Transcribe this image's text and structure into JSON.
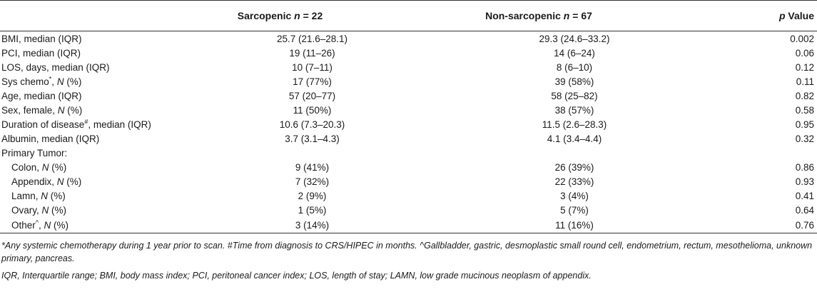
{
  "table": {
    "headers": {
      "col1": "",
      "sarc_prefix": "Sarcopenic ",
      "sarc_n": "n",
      "sarc_suffix": " = 22",
      "non_prefix": "Non-sarcopenic ",
      "non_n": "n",
      "non_suffix": " = 67",
      "p_prefix": "p",
      "p_suffix": " Value"
    },
    "rows": [
      {
        "pre": "BMI, median (IQR)",
        "it": "",
        "sup": "",
        "post": "",
        "sarc": "25.7 (21.6–28.1)",
        "non": "29.3 (24.6–33.2)",
        "p": "0.002"
      },
      {
        "pre": "PCI, median (IQR)",
        "it": "",
        "sup": "",
        "post": "",
        "sarc": "19 (11–26)",
        "non": "14 (6–24)",
        "p": "0.06"
      },
      {
        "pre": "LOS, days, median (IQR)",
        "it": "",
        "sup": "",
        "post": "",
        "sarc": "10 (7–11)",
        "non": "8 (6–10)",
        "p": "0.12"
      },
      {
        "pre": "Sys chemo",
        "sup": "*",
        "mid": ", ",
        "it": "N",
        "post": " (%)",
        "sarc": "17 (77%)",
        "non": "39 (58%)",
        "p": "0.11"
      },
      {
        "pre": "Age, median (IQR)",
        "it": "",
        "sup": "",
        "post": "",
        "sarc": "57 (20–77)",
        "non": "58 (25–82)",
        "p": "0.82"
      },
      {
        "pre": "Sex, female, ",
        "it": "N",
        "sup": "",
        "post": " (%)",
        "sarc": "11 (50%)",
        "non": "38 (57%)",
        "p": "0.58"
      },
      {
        "pre": "Duration of disease",
        "sup": "#",
        "mid": ", median (IQR)",
        "it": "",
        "post": "",
        "sarc": "10.6 (7.3–20.3)",
        "non": "11.5 (2.6–28.3)",
        "p": "0.95"
      },
      {
        "pre": "Albumin, median (IQR)",
        "it": "",
        "sup": "",
        "post": "",
        "sarc": "3.7 (3.1–4.3)",
        "non": "4.1 (3.4–4.4)",
        "p": "0.32"
      },
      {
        "pre": "Primary Tumor:",
        "it": "",
        "sup": "",
        "post": "",
        "sarc": "",
        "non": "",
        "p": ""
      },
      {
        "pre": "Colon, ",
        "it": "N",
        "sup": "",
        "post": " (%)",
        "sarc": "9 (41%)",
        "non": "26 (39%)",
        "p": "0.86",
        "indent": true
      },
      {
        "pre": "Appendix, ",
        "it": "N",
        "sup": "",
        "post": " (%)",
        "sarc": "7 (32%)",
        "non": "22 (33%)",
        "p": "0.93",
        "indent": true
      },
      {
        "pre": "Lamn, ",
        "it": "N",
        "sup": "",
        "post": " (%)",
        "sarc": "2 (9%)",
        "non": "3 (4%)",
        "p": "0.41",
        "indent": true
      },
      {
        "pre": "Ovary, ",
        "it": "N",
        "sup": "",
        "post": " (%)",
        "sarc": "1 (5%)",
        "non": "5 (7%)",
        "p": "0.64",
        "indent": true
      },
      {
        "pre": "Other",
        "sup": "^",
        "mid": ", ",
        "it": "N",
        "post": " (%)",
        "sarc": "3 (14%)",
        "non": "11 (16%)",
        "p": "0.76",
        "indent": true
      }
    ]
  },
  "footnotes": {
    "line1": "*Any systemic chemotherapy during 1 year prior to scan. #Time from diagnosis to CRS/HIPEC in months. ^Gallbladder, gastric, desmoplastic small round cell, endometrium, rectum, mesothelioma, unknown primary, pancreas.",
    "line2": "IQR, Interquartile range; BMI, body mass index; PCI, peritoneal cancer index; LOS, length of stay; LAMN, low grade mucinous neoplasm of appendix."
  }
}
